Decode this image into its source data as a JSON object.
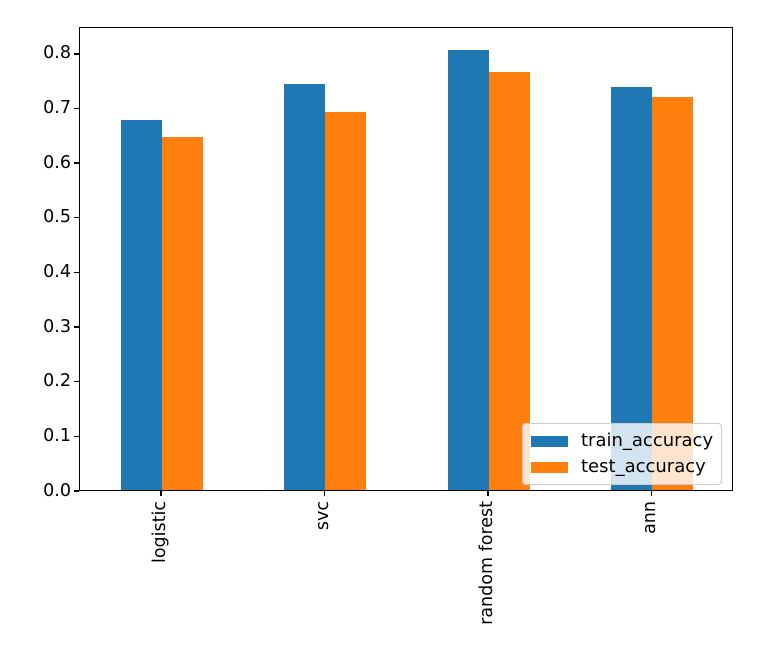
{
  "chart_data": {
    "type": "bar",
    "title": "",
    "xlabel": "",
    "ylabel": "",
    "categories": [
      "logistic",
      "svc",
      "random forest",
      "ann"
    ],
    "series": [
      {
        "name": "train_accuracy",
        "color": "#1f77b4",
        "values": [
          0.68,
          0.746,
          0.808,
          0.739
        ]
      },
      {
        "name": "test_accuracy",
        "color": "#ff7f0e",
        "values": [
          0.648,
          0.693,
          0.768,
          0.722
        ]
      }
    ],
    "yticks": [
      0.0,
      0.1,
      0.2,
      0.3,
      0.4,
      0.5,
      0.6,
      0.7,
      0.8
    ],
    "ytick_labels": [
      "0.0",
      "0.1",
      "0.2",
      "0.3",
      "0.4",
      "0.5",
      "0.6",
      "0.7",
      "0.8"
    ],
    "ylim": [
      0.0,
      0.849
    ],
    "xtick_rotation": 90,
    "grid": false,
    "legend_position": "lower right"
  },
  "legend": {
    "items": [
      {
        "label": "train_accuracy",
        "color": "#1f77b4"
      },
      {
        "label": "test_accuracy",
        "color": "#ff7f0e"
      }
    ]
  },
  "colors": {
    "bar_train": "#1f77b4",
    "bar_test": "#ff7f0e",
    "spine": "#000000",
    "background": "#ffffff",
    "legend_edge": "#cccccc"
  }
}
